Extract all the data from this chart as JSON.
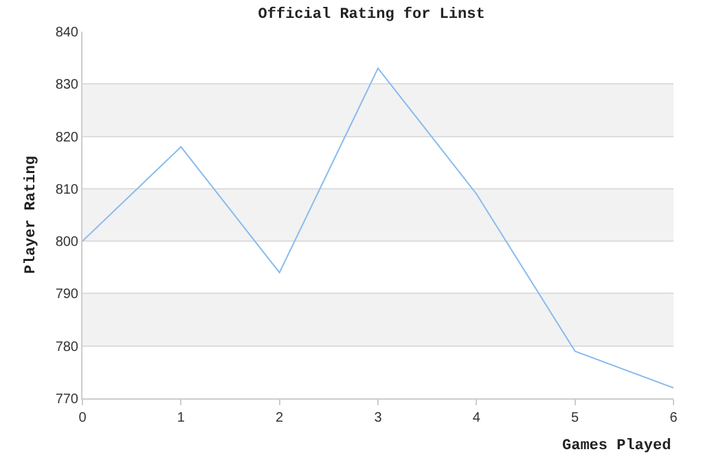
{
  "chart_data": {
    "type": "line",
    "title": "Official Rating for Linst",
    "xlabel": "Games Played",
    "ylabel": "Player Rating",
    "x": [
      0,
      1,
      2,
      3,
      4,
      5,
      6
    ],
    "series": [
      {
        "color": "#88bbee",
        "values": [
          800,
          818,
          794,
          833,
          809,
          779,
          772
        ]
      }
    ],
    "xlim": [
      0,
      6
    ],
    "xticks": [
      0,
      1,
      2,
      3,
      4,
      5,
      6
    ],
    "ylim": [
      770,
      840
    ],
    "yticks": [
      770,
      780,
      790,
      800,
      810,
      820,
      830,
      840
    ],
    "bands": [
      {
        "axis": "y",
        "from": 820,
        "to": 830,
        "color": "#f2f2f2"
      },
      {
        "axis": "y",
        "from": 800,
        "to": 810,
        "color": "#f2f2f2"
      },
      {
        "axis": "y",
        "from": 780,
        "to": 790,
        "color": "#f2f2f2"
      }
    ],
    "grid": "y",
    "marker": "none",
    "line_style": "solid"
  }
}
